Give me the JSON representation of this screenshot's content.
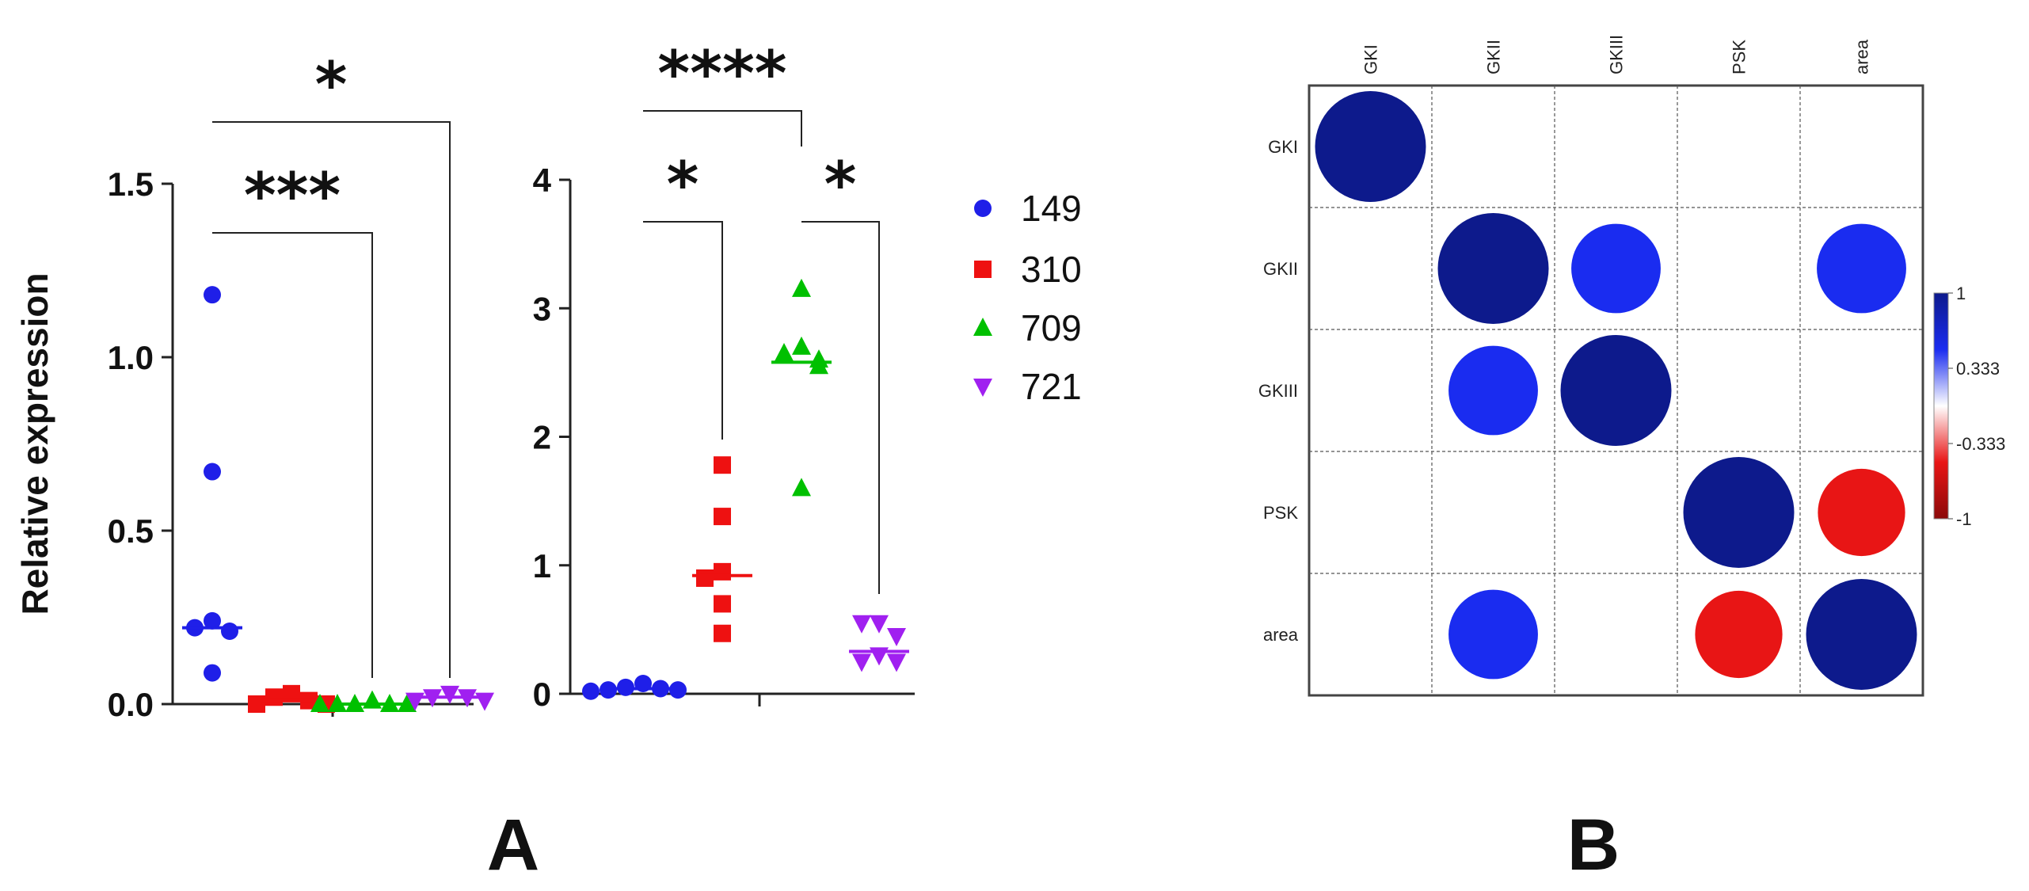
{
  "panels": {
    "a_label": "A",
    "b_label": "B"
  },
  "chart_data": [
    {
      "type": "scatter",
      "panel": "A-left",
      "ylabel": "Relative expression",
      "ylim": [
        0,
        1.5
      ],
      "yticks": [
        "0.0",
        "0.5",
        "1.0",
        "1.5"
      ],
      "groups": [
        "149",
        "310",
        "709",
        "721"
      ],
      "series": [
        {
          "name": "149",
          "color": "#1f1fe8",
          "marker": "circle",
          "values": [
            1.18,
            0.67,
            0.24,
            0.22,
            0.21,
            0.09
          ],
          "median": 0.22
        },
        {
          "name": "310",
          "color": "#ee1111",
          "marker": "square",
          "values": [
            0.03,
            0.02,
            0.01,
            0.0,
            0.0
          ],
          "median": 0.01
        },
        {
          "name": "709",
          "color": "#00c000",
          "marker": "triangle-up",
          "values": [
            0.01,
            0.0,
            0.0,
            0.0,
            0.0,
            0.0
          ],
          "median": 0.0
        },
        {
          "name": "721",
          "color": "#a020f0",
          "marker": "triangle-down",
          "values": [
            0.03,
            0.02,
            0.02,
            0.01,
            0.01
          ],
          "median": 0.02
        }
      ],
      "significance": [
        {
          "from": "149",
          "to": "709",
          "stars": "***"
        },
        {
          "from": "149",
          "to": "721",
          "stars": "*"
        }
      ]
    },
    {
      "type": "scatter",
      "panel": "A-right",
      "ylim": [
        0,
        4
      ],
      "yticks": [
        "0",
        "1",
        "2",
        "3",
        "4"
      ],
      "groups": [
        "149",
        "310",
        "709",
        "721"
      ],
      "series": [
        {
          "name": "149",
          "color": "#1f1fe8",
          "marker": "circle",
          "values": [
            0.08,
            0.05,
            0.04,
            0.03,
            0.03,
            0.02
          ],
          "median": 0.04
        },
        {
          "name": "310",
          "color": "#ee1111",
          "marker": "square",
          "values": [
            1.78,
            1.38,
            0.95,
            0.9,
            0.7,
            0.47
          ],
          "median": 0.92
        },
        {
          "name": "709",
          "color": "#00c000",
          "marker": "triangle-up",
          "values": [
            3.15,
            2.7,
            2.65,
            2.6,
            2.55,
            1.6
          ],
          "median": 2.58
        },
        {
          "name": "721",
          "color": "#a020f0",
          "marker": "triangle-down",
          "values": [
            0.55,
            0.55,
            0.45,
            0.3,
            0.25,
            0.25
          ],
          "median": 0.33
        }
      ],
      "significance": [
        {
          "from": "149",
          "to": "310",
          "stars": "*"
        },
        {
          "from": "149",
          "to": "709",
          "stars": "****"
        },
        {
          "from": "709",
          "to": "721",
          "stars": "*"
        }
      ]
    },
    {
      "type": "heatmap",
      "panel": "B",
      "labels": [
        "GKI",
        "GKII",
        "GKIII",
        "PSK",
        "area"
      ],
      "style": "circle-correlation-upper-and-lower",
      "cells": [
        {
          "row": "GKI",
          "col": "GKI",
          "r": 1.0
        },
        {
          "row": "GKII",
          "col": "GKII",
          "r": 1.0
        },
        {
          "row": "GKII",
          "col": "GKIII",
          "r": 0.65
        },
        {
          "row": "GKII",
          "col": "area",
          "r": 0.65
        },
        {
          "row": "GKIII",
          "col": "GKII",
          "r": 0.65
        },
        {
          "row": "GKIII",
          "col": "GKIII",
          "r": 1.0
        },
        {
          "row": "PSK",
          "col": "PSK",
          "r": 1.0
        },
        {
          "row": "PSK",
          "col": "area",
          "r": -0.62
        },
        {
          "row": "area",
          "col": "GKII",
          "r": 0.65
        },
        {
          "row": "area",
          "col": "PSK",
          "r": -0.62
        },
        {
          "row": "area",
          "col": "area",
          "r": 1.0
        }
      ],
      "colorbar": {
        "ticks": [
          "1",
          "0.333",
          "-0.333",
          "-1"
        ],
        "colors": [
          "#0d1a8c",
          "#1a2cf0",
          "#ffffff",
          "#e81515",
          "#8b0a0a"
        ]
      }
    }
  ]
}
